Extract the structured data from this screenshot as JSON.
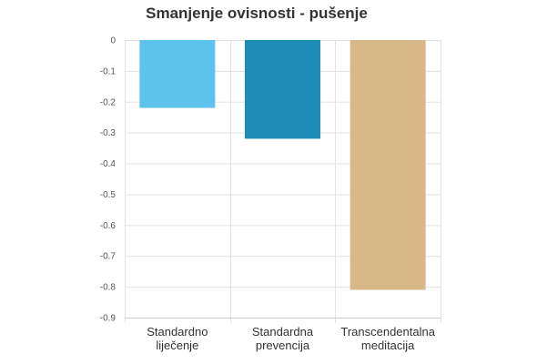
{
  "chart_data": {
    "type": "bar",
    "title": "Smanjenje ovisnosti - pušenje",
    "xlabel": "",
    "ylabel": "",
    "categories": [
      [
        "Standardno",
        "liječenje"
      ],
      [
        "Standardna",
        "prevencija"
      ],
      [
        "Transcendentalna",
        "meditacija"
      ]
    ],
    "values": [
      -0.22,
      -0.32,
      -0.81
    ],
    "bar_colors": [
      "#5ec3ec",
      "#1e8bb9",
      "#d8b886"
    ],
    "ylim": [
      -0.9,
      0
    ],
    "yticks": [
      0,
      -0.1,
      -0.2,
      -0.3,
      -0.4,
      -0.5,
      -0.6,
      -0.7,
      -0.8,
      -0.9
    ],
    "ytick_labels": [
      "0",
      "-0.1",
      "-0.2",
      "-0.3",
      "-0.4",
      "-0.5",
      "-0.6",
      "-0.7",
      "-0.8",
      "-0.9"
    ],
    "grid": true,
    "legend": "none",
    "colors": {
      "gridline": "#e3e3e3",
      "axis": "#cccccc",
      "text": "#333333"
    }
  }
}
